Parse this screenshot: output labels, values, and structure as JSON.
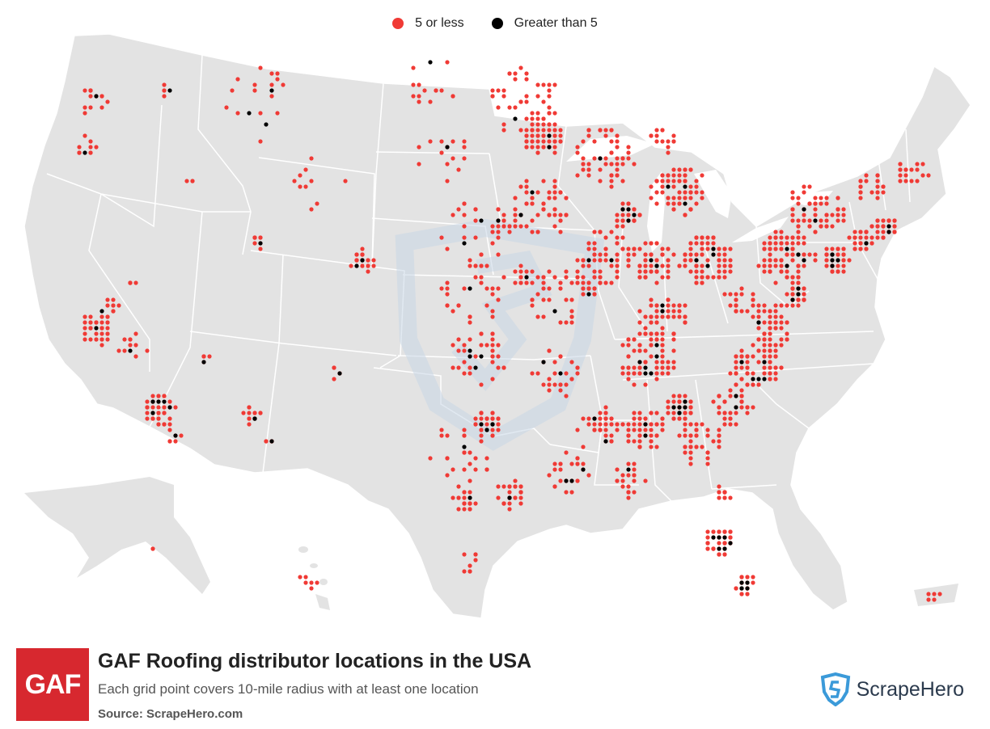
{
  "legend": {
    "items": [
      {
        "label": "5 or less",
        "color": "#f03a35"
      },
      {
        "label": "Greater than 5",
        "color": "#000000"
      }
    ]
  },
  "colors": {
    "land": "#e3e3e3",
    "border": "#ffffff",
    "few": "#f03a35",
    "many": "#000000",
    "watermark": "#c9d7e6"
  },
  "footer": {
    "logo_text": "GAF",
    "title": "GAF Roofing distributor locations in the USA",
    "subtitle": "Each grid point covers 10-mile radius with at least one location",
    "source_label": "Source: ScrapeHero.com",
    "brand_name": "ScrapeHero",
    "brand_icon": "scrapehero-shield-icon"
  },
  "map_data": {
    "clusters": [
      {
        "name": "Seattle",
        "lon": -122.3,
        "lat": 47.5,
        "r": 0.9,
        "n": 14,
        "black": 1
      },
      {
        "name": "Portland",
        "lon": -122.7,
        "lat": 45.5,
        "r": 0.8,
        "n": 10,
        "black": 1
      },
      {
        "name": "Spokane",
        "lon": -117.4,
        "lat": 47.6,
        "r": 0.4,
        "n": 4,
        "black": 1
      },
      {
        "name": "Boise",
        "lon": -116.2,
        "lat": 43.6,
        "r": 0.4,
        "n": 3,
        "black": 0
      },
      {
        "name": "Bay Area",
        "lon": -122.1,
        "lat": 37.7,
        "r": 1.0,
        "n": 34,
        "black": 1
      },
      {
        "name": "Sacramento",
        "lon": -121.4,
        "lat": 38.6,
        "r": 0.7,
        "n": 10,
        "black": 1
      },
      {
        "name": "Central Valley",
        "lon": -119.8,
        "lat": 36.7,
        "r": 1.0,
        "n": 10,
        "black": 1
      },
      {
        "name": "Los Angeles",
        "lon": -118.0,
        "lat": 34.0,
        "r": 1.1,
        "n": 44,
        "black": 5
      },
      {
        "name": "San Diego",
        "lon": -117.1,
        "lat": 32.8,
        "r": 0.5,
        "n": 6,
        "black": 1
      },
      {
        "name": "Reno",
        "lon": -119.8,
        "lat": 39.5,
        "r": 0.3,
        "n": 5,
        "black": 0
      },
      {
        "name": "Las Vegas",
        "lon": -115.1,
        "lat": 36.1,
        "r": 0.3,
        "n": 5,
        "black": 1
      },
      {
        "name": "Phoenix",
        "lon": -112.0,
        "lat": 33.4,
        "r": 0.6,
        "n": 14,
        "black": 3
      },
      {
        "name": "Tucson",
        "lon": -110.9,
        "lat": 32.2,
        "r": 0.3,
        "n": 5,
        "black": 1
      },
      {
        "name": "Salt Lake City",
        "lon": -111.9,
        "lat": 40.8,
        "r": 0.6,
        "n": 9,
        "black": 1
      },
      {
        "name": "Denver",
        "lon": -104.9,
        "lat": 39.8,
        "r": 0.8,
        "n": 24,
        "black": 3
      },
      {
        "name": "Albuquerque",
        "lon": -106.6,
        "lat": 35.1,
        "r": 0.4,
        "n": 5,
        "black": 1
      },
      {
        "name": "Montana",
        "lon": -111.5,
        "lat": 46.6,
        "r": 2.6,
        "n": 16,
        "black": 3
      },
      {
        "name": "Wyoming",
        "lon": -107.5,
        "lat": 43.0,
        "r": 2.2,
        "n": 10,
        "black": 0
      },
      {
        "name": "North Dakota",
        "lon": -100.5,
        "lat": 47.4,
        "r": 2.2,
        "n": 14,
        "black": 1
      },
      {
        "name": "South Dakota",
        "lon": -99.5,
        "lat": 44.0,
        "r": 2.0,
        "n": 14,
        "black": 1
      },
      {
        "name": "Minneapolis",
        "lon": -93.3,
        "lat": 45.0,
        "r": 1.3,
        "n": 56,
        "black": 2
      },
      {
        "name": "Minnesota",
        "lon": -94.5,
        "lat": 46.5,
        "r": 2.4,
        "n": 40,
        "black": 1
      },
      {
        "name": "Wisconsin",
        "lon": -89.5,
        "lat": 44.3,
        "r": 2.2,
        "n": 55,
        "black": 1
      },
      {
        "name": "Iowa",
        "lon": -93.5,
        "lat": 42.0,
        "r": 2.2,
        "n": 55,
        "black": 2
      },
      {
        "name": "Nebraska",
        "lon": -97.5,
        "lat": 41.0,
        "r": 2.4,
        "n": 26,
        "black": 2
      },
      {
        "name": "Omaha",
        "lon": -96.0,
        "lat": 41.25,
        "r": 0.5,
        "n": 10,
        "black": 1
      },
      {
        "name": "Kansas City",
        "lon": -94.6,
        "lat": 39.1,
        "r": 0.6,
        "n": 14,
        "black": 1
      },
      {
        "name": "Kansas",
        "lon": -98.0,
        "lat": 38.5,
        "r": 2.4,
        "n": 30,
        "black": 1
      },
      {
        "name": "Oklahoma",
        "lon": -97.3,
        "lat": 35.6,
        "r": 2.0,
        "n": 34,
        "black": 4
      },
      {
        "name": "Dallas",
        "lon": -96.9,
        "lat": 32.8,
        "r": 0.9,
        "n": 34,
        "black": 6
      },
      {
        "name": "Texas Central",
        "lon": -98.5,
        "lat": 31.5,
        "r": 2.2,
        "n": 24,
        "black": 1
      },
      {
        "name": "Houston",
        "lon": -95.4,
        "lat": 29.8,
        "r": 0.9,
        "n": 30,
        "black": 2
      },
      {
        "name": "San Antonio",
        "lon": -98.3,
        "lat": 29.5,
        "r": 0.7,
        "n": 22,
        "black": 1
      },
      {
        "name": "South Texas",
        "lon": -98.0,
        "lat": 26.8,
        "r": 1.0,
        "n": 8,
        "black": 0
      },
      {
        "name": "Arkansas",
        "lon": -92.5,
        "lat": 35.0,
        "r": 1.6,
        "n": 26,
        "black": 2
      },
      {
        "name": "Louisiana",
        "lon": -91.5,
        "lat": 30.7,
        "r": 1.5,
        "n": 26,
        "black": 3
      },
      {
        "name": "Missouri",
        "lon": -92.3,
        "lat": 38.3,
        "r": 2.0,
        "n": 36,
        "black": 1
      },
      {
        "name": "St Louis",
        "lon": -90.3,
        "lat": 38.6,
        "r": 0.6,
        "n": 14,
        "black": 1
      },
      {
        "name": "Chicago",
        "lon": -87.9,
        "lat": 41.8,
        "r": 0.8,
        "n": 40,
        "black": 4
      },
      {
        "name": "Illinois",
        "lon": -89.3,
        "lat": 40.0,
        "r": 1.9,
        "n": 55,
        "black": 2
      },
      {
        "name": "Indiana",
        "lon": -86.3,
        "lat": 39.9,
        "r": 1.6,
        "n": 60,
        "black": 3
      },
      {
        "name": "Michigan",
        "lon": -84.6,
        "lat": 43.0,
        "r": 1.8,
        "n": 70,
        "black": 3
      },
      {
        "name": "Michigan North",
        "lon": -85.5,
        "lat": 45.2,
        "r": 1.0,
        "n": 14,
        "black": 0
      },
      {
        "name": "Ohio",
        "lon": -82.8,
        "lat": 40.2,
        "r": 1.7,
        "n": 80,
        "black": 4
      },
      {
        "name": "Kentucky",
        "lon": -85.5,
        "lat": 37.5,
        "r": 1.7,
        "n": 55,
        "black": 2
      },
      {
        "name": "Tennessee",
        "lon": -86.5,
        "lat": 35.8,
        "r": 2.0,
        "n": 65,
        "black": 6
      },
      {
        "name": "Mississippi",
        "lon": -89.7,
        "lat": 32.6,
        "r": 1.5,
        "n": 40,
        "black": 2
      },
      {
        "name": "Alabama",
        "lon": -86.7,
        "lat": 32.8,
        "r": 1.5,
        "n": 52,
        "black": 2
      },
      {
        "name": "Atlanta",
        "lon": -84.4,
        "lat": 33.8,
        "r": 0.9,
        "n": 46,
        "black": 7
      },
      {
        "name": "Georgia",
        "lon": -83.3,
        "lat": 32.3,
        "r": 1.6,
        "n": 40,
        "black": 0
      },
      {
        "name": "Gulf Coast",
        "lon": -87.5,
        "lat": 30.6,
        "r": 1.2,
        "n": 20,
        "black": 1
      },
      {
        "name": "Jacksonville",
        "lon": -81.7,
        "lat": 30.3,
        "r": 0.6,
        "n": 14,
        "black": 0
      },
      {
        "name": "Orlando Tampa",
        "lon": -81.9,
        "lat": 28.2,
        "r": 1.0,
        "n": 55,
        "black": 6
      },
      {
        "name": "South Florida",
        "lon": -80.4,
        "lat": 26.4,
        "r": 0.7,
        "n": 30,
        "black": 5
      },
      {
        "name": "South Carolina",
        "lon": -81.0,
        "lat": 34.0,
        "r": 1.3,
        "n": 40,
        "black": 2
      },
      {
        "name": "North Carolina",
        "lon": -79.6,
        "lat": 35.7,
        "r": 1.7,
        "n": 70,
        "black": 5
      },
      {
        "name": "Virginia",
        "lon": -78.5,
        "lat": 37.6,
        "r": 1.5,
        "n": 50,
        "black": 2
      },
      {
        "name": "DC Baltimore",
        "lon": -76.9,
        "lat": 39.0,
        "r": 0.7,
        "n": 36,
        "black": 3
      },
      {
        "name": "Pennsylvania",
        "lon": -77.6,
        "lat": 40.6,
        "r": 1.9,
        "n": 95,
        "black": 5
      },
      {
        "name": "New Jersey NYC",
        "lon": -74.4,
        "lat": 40.7,
        "r": 0.8,
        "n": 50,
        "black": 5
      },
      {
        "name": "New York",
        "lon": -75.7,
        "lat": 42.8,
        "r": 2.0,
        "n": 60,
        "black": 2
      },
      {
        "name": "Connecticut",
        "lon": -72.8,
        "lat": 41.6,
        "r": 0.8,
        "n": 30,
        "black": 2
      },
      {
        "name": "Boston",
        "lon": -71.3,
        "lat": 42.3,
        "r": 0.8,
        "n": 40,
        "black": 2
      },
      {
        "name": "Vermont NH",
        "lon": -72.2,
        "lat": 43.9,
        "r": 1.0,
        "n": 22,
        "black": 0
      },
      {
        "name": "Maine",
        "lon": -69.5,
        "lat": 44.6,
        "r": 1.3,
        "n": 18,
        "black": 0
      },
      {
        "name": "West Virginia",
        "lon": -80.5,
        "lat": 38.6,
        "r": 1.0,
        "n": 20,
        "black": 0
      },
      {
        "name": "Alaska",
        "lon": -149.9,
        "lat": 61.2,
        "r": 0.3,
        "n": 2,
        "black": 0
      },
      {
        "name": "Hawaii",
        "lon": -157.8,
        "lat": 21.3,
        "r": 1.0,
        "n": 6,
        "black": 0
      },
      {
        "name": "Puerto Rico",
        "lon": -66.3,
        "lat": 18.2,
        "r": 0.4,
        "n": 5,
        "black": 0
      }
    ]
  }
}
